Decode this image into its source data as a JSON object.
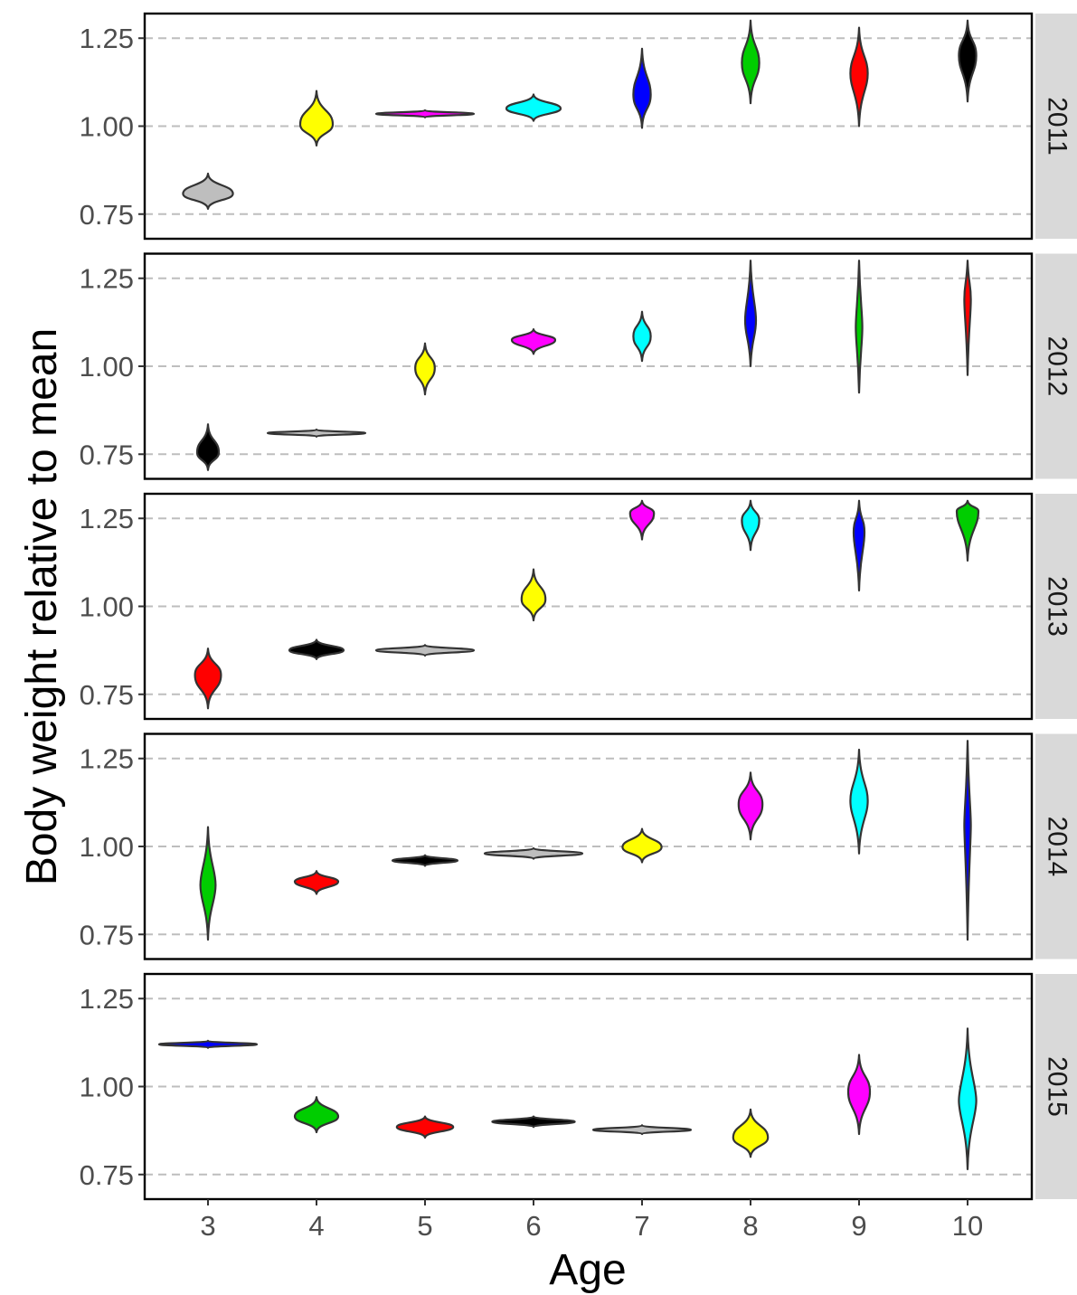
{
  "chart_data": {
    "type": "violin",
    "facet_by": "year",
    "xlabel": "Age",
    "ylabel": "Body weight relative to mean",
    "x_categories": [
      "3",
      "4",
      "5",
      "6",
      "7",
      "8",
      "9",
      "10"
    ],
    "ylim": [
      0.68,
      1.32
    ],
    "y_ticks": [
      0.75,
      1.0,
      1.25
    ],
    "y_tick_labels": [
      "0.75",
      "1.00",
      "1.25"
    ],
    "grid": "major y, dashed",
    "colors": {
      "grey": "#bebebe",
      "yellow": "#ffff00",
      "magenta": "#ff00ff",
      "cyan": "#00ffff",
      "blue": "#0000ff",
      "green": "#00cd00",
      "red": "#ff0000",
      "black": "#000000",
      "outline": "#333333",
      "gridline": "#bebebe",
      "strip_bg": "#d9d9d9"
    },
    "panels": [
      {
        "year": "2011",
        "violins": [
          {
            "age": "3",
            "color": "grey",
            "center": 0.808,
            "min": 0.765,
            "max": 0.865,
            "halfwidth": 0.23
          },
          {
            "age": "4",
            "color": "yellow",
            "center": 1.005,
            "min": 0.945,
            "max": 1.1,
            "halfwidth": 0.15
          },
          {
            "age": "5",
            "color": "magenta",
            "center": 1.035,
            "min": 1.025,
            "max": 1.045,
            "halfwidth": 0.45
          },
          {
            "age": "6",
            "color": "cyan",
            "center": 1.05,
            "min": 1.015,
            "max": 1.09,
            "halfwidth": 0.25
          },
          {
            "age": "7",
            "color": "blue",
            "center": 1.09,
            "min": 0.995,
            "max": 1.22,
            "halfwidth": 0.08
          },
          {
            "age": "8",
            "color": "green",
            "center": 1.18,
            "min": 1.065,
            "max": 1.3,
            "halfwidth": 0.08
          },
          {
            "age": "9",
            "color": "red",
            "center": 1.15,
            "min": 1.0,
            "max": 1.28,
            "halfwidth": 0.08
          },
          {
            "age": "10",
            "color": "black",
            "center": 1.2,
            "min": 1.07,
            "max": 1.3,
            "halfwidth": 0.08
          }
        ]
      },
      {
        "year": "2012",
        "violins": [
          {
            "age": "3",
            "color": "black",
            "center": 0.755,
            "min": 0.705,
            "max": 0.835,
            "halfwidth": 0.1
          },
          {
            "age": "4",
            "color": "grey",
            "center": 0.81,
            "min": 0.8,
            "max": 0.82,
            "halfwidth": 0.45
          },
          {
            "age": "5",
            "color": "yellow",
            "center": 0.995,
            "min": 0.92,
            "max": 1.065,
            "halfwidth": 0.09
          },
          {
            "age": "6",
            "color": "magenta",
            "center": 1.075,
            "min": 1.035,
            "max": 1.105,
            "halfwidth": 0.2
          },
          {
            "age": "7",
            "color": "cyan",
            "center": 1.085,
            "min": 1.015,
            "max": 1.155,
            "halfwidth": 0.08
          },
          {
            "age": "8",
            "color": "blue",
            "center": 1.13,
            "min": 1.0,
            "max": 1.3,
            "halfwidth": 0.05
          },
          {
            "age": "9",
            "color": "green",
            "center": 1.11,
            "min": 0.925,
            "max": 1.3,
            "halfwidth": 0.03
          },
          {
            "age": "10",
            "color": "red",
            "center": 1.19,
            "min": 0.975,
            "max": 1.3,
            "halfwidth": 0.03
          }
        ]
      },
      {
        "year": "2013",
        "violins": [
          {
            "age": "3",
            "color": "red",
            "center": 0.805,
            "min": 0.71,
            "max": 0.88,
            "halfwidth": 0.12
          },
          {
            "age": "4",
            "color": "black",
            "center": 0.875,
            "min": 0.85,
            "max": 0.905,
            "halfwidth": 0.25
          },
          {
            "age": "5",
            "color": "grey",
            "center": 0.875,
            "min": 0.86,
            "max": 0.89,
            "halfwidth": 0.45
          },
          {
            "age": "6",
            "color": "yellow",
            "center": 1.02,
            "min": 0.96,
            "max": 1.105,
            "halfwidth": 0.11
          },
          {
            "age": "7",
            "color": "magenta",
            "center": 1.265,
            "min": 1.19,
            "max": 1.3,
            "halfwidth": 0.11
          },
          {
            "age": "8",
            "color": "cyan",
            "center": 1.245,
            "min": 1.16,
            "max": 1.3,
            "halfwidth": 0.08
          },
          {
            "age": "9",
            "color": "blue",
            "center": 1.21,
            "min": 1.045,
            "max": 1.3,
            "halfwidth": 0.05
          },
          {
            "age": "10",
            "color": "green",
            "center": 1.27,
            "min": 1.13,
            "max": 1.3,
            "halfwidth": 0.1
          }
        ]
      },
      {
        "year": "2014",
        "violins": [
          {
            "age": "3",
            "color": "green",
            "center": 0.89,
            "min": 0.735,
            "max": 1.055,
            "halfwidth": 0.07
          },
          {
            "age": "4",
            "color": "red",
            "center": 0.9,
            "min": 0.865,
            "max": 0.93,
            "halfwidth": 0.2
          },
          {
            "age": "5",
            "color": "black",
            "center": 0.96,
            "min": 0.945,
            "max": 0.975,
            "halfwidth": 0.3
          },
          {
            "age": "6",
            "color": "grey",
            "center": 0.98,
            "min": 0.965,
            "max": 0.995,
            "halfwidth": 0.45
          },
          {
            "age": "7",
            "color": "yellow",
            "center": 0.998,
            "min": 0.955,
            "max": 1.05,
            "halfwidth": 0.18
          },
          {
            "age": "8",
            "color": "magenta",
            "center": 1.12,
            "min": 1.02,
            "max": 1.21,
            "halfwidth": 0.11
          },
          {
            "age": "9",
            "color": "cyan",
            "center": 1.13,
            "min": 0.98,
            "max": 1.275,
            "halfwidth": 0.08
          },
          {
            "age": "10",
            "color": "blue",
            "center": 1.06,
            "min": 0.735,
            "max": 1.3,
            "halfwidth": 0.03
          }
        ]
      },
      {
        "year": "2015",
        "violins": [
          {
            "age": "3",
            "color": "blue",
            "center": 1.12,
            "min": 1.11,
            "max": 1.13,
            "halfwidth": 0.45
          },
          {
            "age": "4",
            "color": "green",
            "center": 0.915,
            "min": 0.87,
            "max": 0.97,
            "halfwidth": 0.2
          },
          {
            "age": "5",
            "color": "red",
            "center": 0.885,
            "min": 0.855,
            "max": 0.915,
            "halfwidth": 0.26
          },
          {
            "age": "6",
            "color": "black",
            "center": 0.9,
            "min": 0.885,
            "max": 0.915,
            "halfwidth": 0.38
          },
          {
            "age": "7",
            "color": "grey",
            "center": 0.877,
            "min": 0.865,
            "max": 0.89,
            "halfwidth": 0.45
          },
          {
            "age": "8",
            "color": "yellow",
            "center": 0.855,
            "min": 0.8,
            "max": 0.935,
            "halfwidth": 0.16
          },
          {
            "age": "9",
            "color": "magenta",
            "center": 0.985,
            "min": 0.865,
            "max": 1.09,
            "halfwidth": 0.1
          },
          {
            "age": "10",
            "color": "cyan",
            "center": 0.96,
            "min": 0.765,
            "max": 1.165,
            "halfwidth": 0.08
          }
        ]
      }
    ]
  }
}
